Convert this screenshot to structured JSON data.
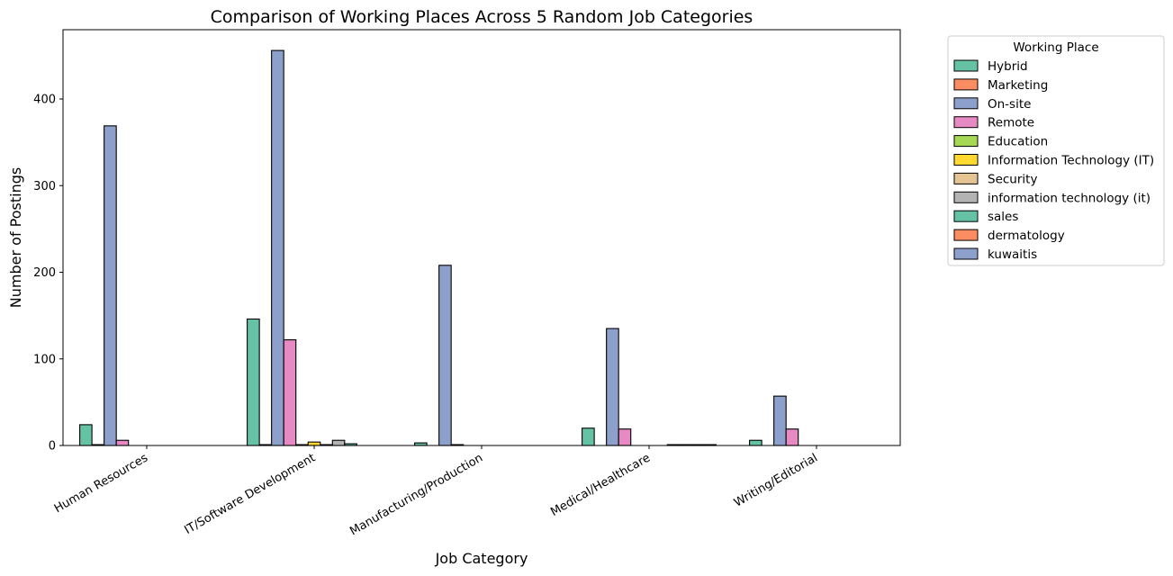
{
  "chart_data": {
    "type": "bar",
    "title": "Comparison of Working Places Across 5 Random Job Categories",
    "xlabel": "Job Category",
    "ylabel": "Number of Postings",
    "ylim": [
      0,
      480
    ],
    "yticks": [
      0,
      100,
      200,
      300,
      400
    ],
    "grid": false,
    "legend_title": "Working Place",
    "legend_position": "outside-top-right",
    "categories": [
      "Human Resources",
      "IT/Software Development",
      "Manufacturing/Production",
      "Medical/Healthcare",
      "Writing/Editorial"
    ],
    "series": [
      {
        "name": "Hybrid",
        "color": "#66c2a5",
        "values": [
          24,
          146,
          3,
          20,
          6
        ]
      },
      {
        "name": "Marketing",
        "color": "#fc8d62",
        "values": [
          1,
          1,
          0,
          0,
          0
        ]
      },
      {
        "name": "On-site",
        "color": "#8da0cb",
        "values": [
          369,
          456,
          208,
          135,
          57
        ]
      },
      {
        "name": "Remote",
        "color": "#e78ac3",
        "values": [
          6,
          122,
          1,
          19,
          19
        ]
      },
      {
        "name": "Education",
        "color": "#a6d854",
        "values": [
          0,
          1,
          0,
          0,
          0
        ]
      },
      {
        "name": "Information Technology (IT)",
        "color": "#ffd92f",
        "values": [
          0,
          4,
          0,
          0,
          0
        ]
      },
      {
        "name": "Security",
        "color": "#e5c494",
        "values": [
          0,
          1,
          0,
          0,
          0
        ]
      },
      {
        "name": "information technology (it)",
        "color": "#b3b3b3",
        "values": [
          0,
          6,
          0,
          1,
          0
        ]
      },
      {
        "name": "sales",
        "color": "#66c2a5",
        "values": [
          0,
          2,
          0,
          1,
          0
        ]
      },
      {
        "name": "dermatology",
        "color": "#fc8d62",
        "values": [
          0,
          0,
          0,
          1,
          0
        ]
      },
      {
        "name": "kuwaitis",
        "color": "#8da0cb",
        "values": [
          0,
          0,
          0,
          1,
          0
        ]
      }
    ]
  }
}
